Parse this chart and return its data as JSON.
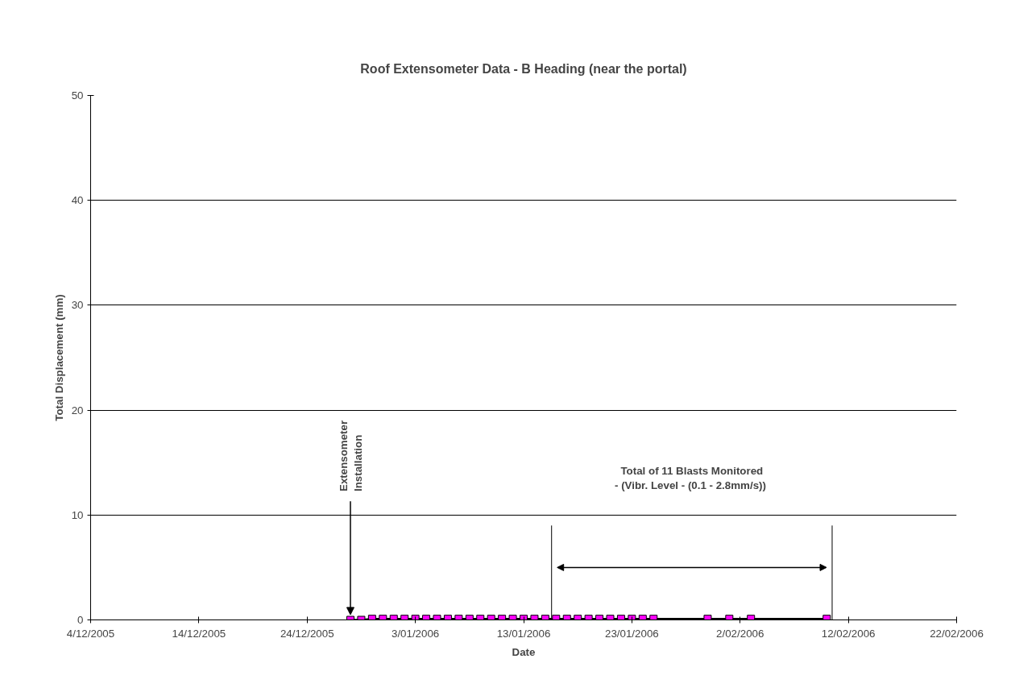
{
  "chart_data": {
    "type": "line",
    "title": "Roof Extensometer Data - B Heading (near the portal)",
    "xlabel": "Date",
    "ylabel": "Total Displacement (mm)",
    "x": [
      "2005-12-28",
      "2005-12-29",
      "2005-12-30",
      "2005-12-31",
      "2006-01-01",
      "2006-01-02",
      "2006-01-03",
      "2006-01-04",
      "2006-01-05",
      "2006-01-06",
      "2006-01-07",
      "2006-01-08",
      "2006-01-09",
      "2006-01-10",
      "2006-01-11",
      "2006-01-12",
      "2006-01-13",
      "2006-01-14",
      "2006-01-15",
      "2006-01-16",
      "2006-01-17",
      "2006-01-18",
      "2006-01-19",
      "2006-01-20",
      "2006-01-21",
      "2006-01-22",
      "2006-01-23",
      "2006-01-24",
      "2006-01-25",
      "2006-01-30",
      "2006-02-01",
      "2006-02-03",
      "2006-02-10"
    ],
    "series": [
      {
        "color": "#ff00ff",
        "values": [
          0,
          0,
          0.1,
          0.1,
          0.1,
          0.1,
          0.1,
          0.1,
          0.1,
          0.1,
          0.1,
          0.1,
          0.1,
          0.1,
          0.1,
          0.1,
          0.1,
          0.1,
          0.1,
          0.1,
          0.1,
          0.1,
          0.1,
          0.1,
          0.1,
          0.1,
          0.1,
          0.1,
          0.1,
          0.1,
          0.1,
          0.1,
          0.1
        ]
      }
    ],
    "xlim": [
      "2005-12-04",
      "2006-02-22"
    ],
    "xticks": [
      {
        "value": "2005-12-04",
        "label": "4/12/2005"
      },
      {
        "value": "2005-12-14",
        "label": "14/12/2005"
      },
      {
        "value": "2005-12-24",
        "label": "24/12/2005"
      },
      {
        "value": "2006-01-03",
        "label": "3/01/2006"
      },
      {
        "value": "2006-01-13",
        "label": "13/01/2006"
      },
      {
        "value": "2006-01-23",
        "label": "23/01/2006"
      },
      {
        "value": "2006-02-02",
        "label": "2/02/2006"
      },
      {
        "value": "2006-02-12",
        "label": "12/02/2006"
      },
      {
        "value": "2006-02-22",
        "label": "22/02/2006"
      }
    ],
    "ylim": [
      0,
      50
    ],
    "yticks": [
      0,
      10,
      20,
      30,
      40,
      50
    ],
    "grid": "y",
    "marker": "square",
    "line_style": "solid",
    "annotations": [
      {
        "text": "Extensometer\nInstallation",
        "x": "2005-12-28",
        "y": 0
      },
      "Total of 11 Blasts Monitored\n - (Vibr. Level - (0.1 - 2.8mm/s))"
    ],
    "ref_lines": [
      {
        "axis": "x",
        "value": "2006-01-15T14:00",
        "label": null,
        "color": "#000000"
      },
      {
        "axis": "x",
        "value": "2006-02-10T12:00",
        "label": null,
        "color": "#000000"
      }
    ]
  }
}
